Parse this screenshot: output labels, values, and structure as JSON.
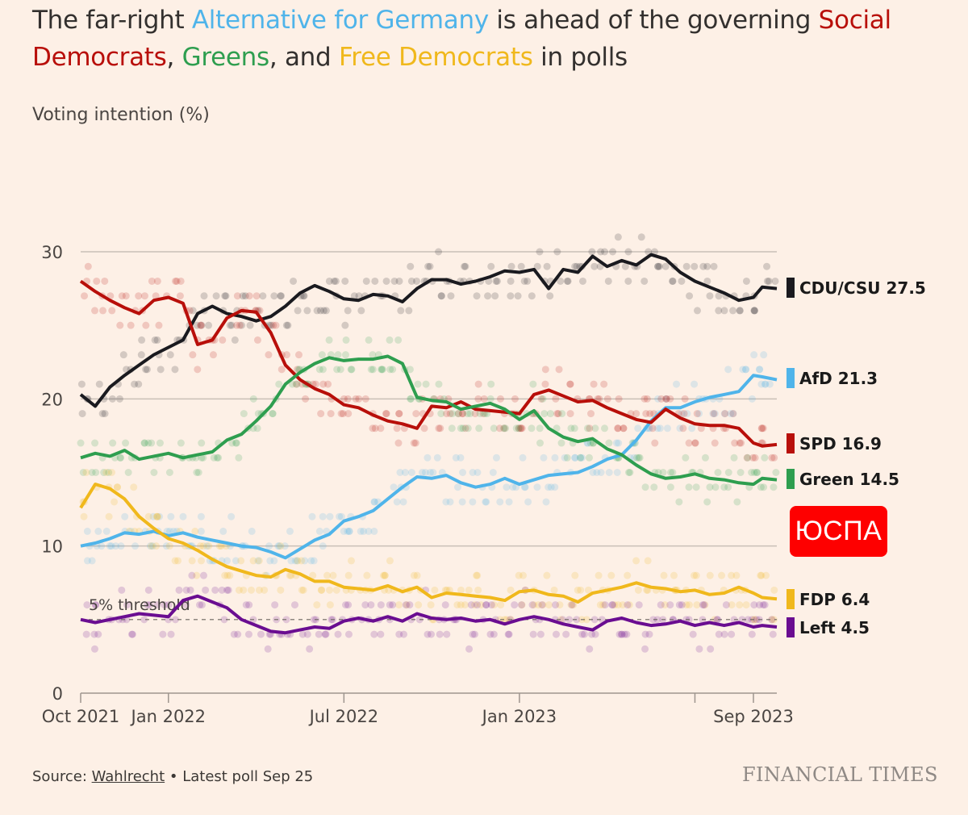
{
  "title": {
    "part1": "The far-right ",
    "afd": "Alternative for Germany",
    "part2": " is ahead of the governing ",
    "spd": "Social Democrats",
    "comma1": ", ",
    "greens": "Greens",
    "part3": ", and ",
    "fdp": "Free Democrats",
    "part4": " in polls"
  },
  "subtitle": "Voting intention (%)",
  "badge": "ЮСПА",
  "footer": {
    "source_prefix": "Source: ",
    "source_link": "Wahlrecht",
    "latest": " • Latest poll Sep 25"
  },
  "brand": "FINANCIAL TIMES",
  "chart_data": {
    "type": "line",
    "title": "Voting intention (%)",
    "xlabel": "",
    "ylabel": "Voting intention (%)",
    "ylim": [
      0,
      30
    ],
    "yticks": [
      0,
      10,
      20,
      30
    ],
    "grid": true,
    "x_unit": "months since Oct 2021",
    "xlim": [
      0,
      24
    ],
    "xticks": [
      {
        "value": 0,
        "label": "Oct 2021"
      },
      {
        "value": 3,
        "label": "Jan 2022"
      },
      {
        "value": 9,
        "label": "Jul 2022"
      },
      {
        "value": 15,
        "label": "Jan 2023"
      },
      {
        "value": 21,
        "label": ""
      },
      {
        "value": 23,
        "label": "Sep 2023"
      }
    ],
    "threshold": {
      "value": 5,
      "label": "5% threshold"
    },
    "x": [
      0,
      0.5,
      1,
      1.5,
      2,
      2.5,
      3,
      3.5,
      4,
      4.5,
      5,
      5.5,
      6,
      6.5,
      7,
      7.5,
      8,
      8.5,
      9,
      9.5,
      10,
      10.5,
      11,
      11.5,
      12,
      12.5,
      13,
      13.5,
      14,
      14.5,
      15,
      15.5,
      16,
      16.5,
      17,
      17.5,
      18,
      18.5,
      19,
      19.5,
      20,
      20.5,
      21,
      21.5,
      22,
      22.5,
      23,
      23.3,
      23.8
    ],
    "series": [
      {
        "name": "CDU/CSU",
        "color": "#1a1a1f",
        "latest": 27.5,
        "values": [
          20.3,
          19.5,
          20.8,
          21.6,
          22.3,
          23.0,
          23.5,
          24.0,
          25.8,
          26.3,
          25.8,
          25.6,
          25.3,
          25.6,
          26.3,
          27.2,
          27.7,
          27.3,
          26.8,
          26.7,
          27.1,
          27.0,
          26.6,
          27.5,
          28.1,
          28.1,
          27.8,
          28.0,
          28.3,
          28.7,
          28.6,
          28.8,
          27.5,
          28.8,
          28.6,
          29.7,
          29.0,
          29.4,
          29.1,
          29.8,
          29.5,
          28.6,
          28.0,
          27.6,
          27.2,
          26.7,
          26.9,
          27.6,
          27.5
        ]
      },
      {
        "name": "AfD",
        "color": "#4fb4ea",
        "latest": 21.3,
        "values": [
          10.0,
          10.2,
          10.5,
          10.9,
          10.8,
          11.0,
          10.7,
          10.9,
          10.6,
          10.4,
          10.2,
          10.0,
          9.9,
          9.6,
          9.2,
          9.8,
          10.4,
          10.8,
          11.7,
          12.0,
          12.4,
          13.2,
          14.0,
          14.7,
          14.6,
          14.8,
          14.3,
          14.0,
          14.2,
          14.6,
          14.2,
          14.5,
          14.8,
          14.9,
          15.0,
          15.4,
          15.9,
          16.2,
          17.2,
          18.5,
          19.4,
          19.4,
          19.8,
          20.1,
          20.3,
          20.5,
          21.6,
          21.5,
          21.3
        ]
      },
      {
        "name": "SPD",
        "color": "#b80f0a",
        "latest": 16.9,
        "values": [
          28.0,
          27.3,
          26.7,
          26.2,
          25.8,
          26.7,
          26.9,
          26.5,
          23.7,
          24.0,
          25.5,
          26.0,
          25.9,
          24.5,
          22.3,
          21.3,
          20.7,
          20.3,
          19.6,
          19.4,
          18.9,
          18.5,
          18.3,
          18.0,
          19.5,
          19.4,
          19.8,
          19.3,
          19.2,
          19.1,
          19.0,
          20.3,
          20.6,
          20.2,
          19.8,
          19.9,
          19.4,
          19.0,
          18.6,
          18.4,
          19.3,
          18.7,
          18.3,
          18.2,
          18.2,
          18.0,
          17.0,
          16.8,
          16.9
        ]
      },
      {
        "name": "Green",
        "color": "#2e9e4f",
        "latest": 14.5,
        "values": [
          16.0,
          16.3,
          16.1,
          16.5,
          15.9,
          16.1,
          16.3,
          16.0,
          16.2,
          16.4,
          17.2,
          17.6,
          18.5,
          19.5,
          21.0,
          21.8,
          22.4,
          22.8,
          22.6,
          22.7,
          22.7,
          22.9,
          22.4,
          20.1,
          19.9,
          19.8,
          19.3,
          19.5,
          19.7,
          19.3,
          18.6,
          19.2,
          18.0,
          17.4,
          17.1,
          17.3,
          16.6,
          16.2,
          15.5,
          14.9,
          14.6,
          14.7,
          14.9,
          14.6,
          14.5,
          14.3,
          14.2,
          14.6,
          14.5
        ]
      },
      {
        "name": "FDP",
        "color": "#f0b81c",
        "latest": 6.4,
        "values": [
          12.6,
          14.2,
          13.9,
          13.2,
          12.0,
          11.2,
          10.5,
          10.2,
          9.7,
          9.1,
          8.6,
          8.3,
          8.0,
          7.9,
          8.4,
          8.1,
          7.6,
          7.6,
          7.2,
          7.1,
          7.0,
          7.3,
          6.9,
          7.2,
          6.5,
          6.8,
          6.7,
          6.6,
          6.5,
          6.3,
          6.9,
          7.0,
          6.7,
          6.6,
          6.2,
          6.8,
          7.0,
          7.2,
          7.5,
          7.2,
          7.1,
          6.9,
          7.0,
          6.7,
          6.8,
          7.2,
          6.8,
          6.5,
          6.4
        ]
      },
      {
        "name": "Left",
        "color": "#6a0d91",
        "latest": 4.5,
        "values": [
          5.0,
          4.8,
          5.0,
          5.2,
          5.4,
          5.3,
          5.2,
          6.3,
          6.6,
          6.2,
          5.8,
          5.0,
          4.6,
          4.2,
          4.1,
          4.3,
          4.5,
          4.4,
          4.9,
          5.1,
          4.9,
          5.2,
          4.9,
          5.4,
          5.1,
          5.0,
          5.1,
          4.9,
          5.0,
          4.7,
          5.0,
          5.2,
          5.0,
          4.7,
          4.5,
          4.3,
          4.9,
          5.1,
          4.8,
          4.6,
          4.7,
          4.9,
          4.6,
          4.8,
          4.6,
          4.8,
          4.5,
          4.6,
          4.5
        ]
      }
    ],
    "legend": [
      {
        "label": "CDU/CSU 27.5",
        "color": "#1a1a1f"
      },
      {
        "label": "AfD 21.3",
        "color": "#4fb4ea"
      },
      {
        "label": "SPD 16.9",
        "color": "#b80f0a"
      },
      {
        "label": "Green 14.5",
        "color": "#2e9e4f"
      },
      {
        "label": "FDP 6.4",
        "color": "#f0b81c"
      },
      {
        "label": "Left 4.5",
        "color": "#6a0d91"
      }
    ],
    "legend_placement": "right"
  }
}
